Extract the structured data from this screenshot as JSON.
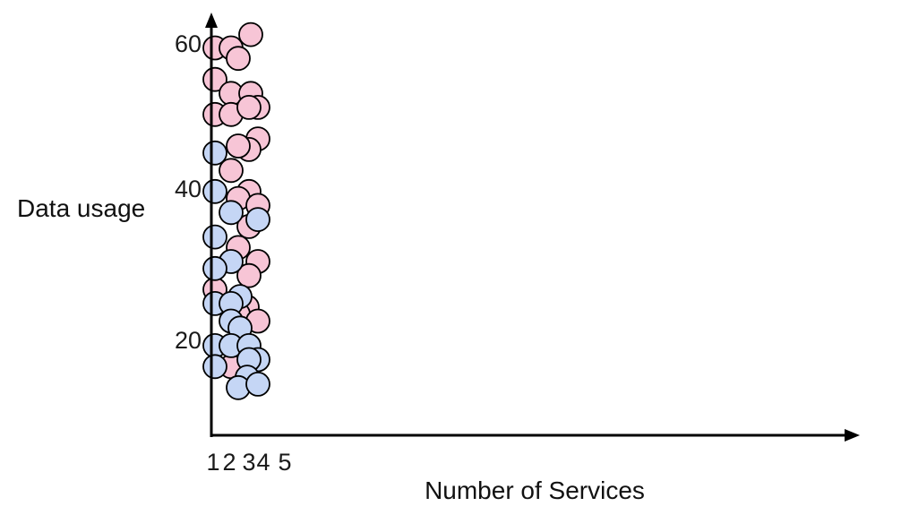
{
  "chart_data": {
    "type": "scatter",
    "title": "",
    "xlabel": "Number of Services",
    "ylabel": "Data usage",
    "x_ticks": [
      "1",
      "2",
      "3",
      "4",
      "5"
    ],
    "y_ticks": [
      "20",
      "40",
      "60"
    ],
    "xlim": [
      1,
      5
    ],
    "ylim": [
      7,
      63
    ],
    "grid": false,
    "legend": "none",
    "colors": {
      "pink": "#f7c5d6",
      "blue": "#c5d6f5",
      "outline": "#000000",
      "axis": "#000000"
    },
    "series": [
      {
        "color": "pink",
        "points": [
          {
            "x": 1.1,
            "y": 60.0
          },
          {
            "x": 2.0,
            "y": 60.0
          },
          {
            "x": 3.1,
            "y": 61.9
          },
          {
            "x": 2.4,
            "y": 58.5
          },
          {
            "x": 1.1,
            "y": 55.5
          },
          {
            "x": 2.0,
            "y": 53.5
          },
          {
            "x": 3.1,
            "y": 53.5
          },
          {
            "x": 1.1,
            "y": 50.5
          },
          {
            "x": 2.0,
            "y": 50.5
          },
          {
            "x": 3.5,
            "y": 51.5
          },
          {
            "x": 3.0,
            "y": 51.5
          },
          {
            "x": 3.5,
            "y": 47.0
          },
          {
            "x": 3.0,
            "y": 45.5
          },
          {
            "x": 2.4,
            "y": 46.0
          },
          {
            "x": 2.0,
            "y": 42.5
          },
          {
            "x": 3.0,
            "y": 39.5
          },
          {
            "x": 2.4,
            "y": 38.5
          },
          {
            "x": 3.5,
            "y": 37.5
          },
          {
            "x": 3.0,
            "y": 34.5
          },
          {
            "x": 2.4,
            "y": 31.5
          },
          {
            "x": 3.5,
            "y": 29.5
          },
          {
            "x": 3.0,
            "y": 27.5
          },
          {
            "x": 1.1,
            "y": 25.5
          },
          {
            "x": 2.9,
            "y": 23.0
          },
          {
            "x": 2.4,
            "y": 22.0
          },
          {
            "x": 3.5,
            "y": 21.0
          },
          {
            "x": 2.0,
            "y": 14.5
          }
        ]
      },
      {
        "color": "blue",
        "points": [
          {
            "x": 1.1,
            "y": 45.0
          },
          {
            "x": 1.1,
            "y": 39.5
          },
          {
            "x": 2.0,
            "y": 36.5
          },
          {
            "x": 3.5,
            "y": 35.5
          },
          {
            "x": 1.1,
            "y": 33.0
          },
          {
            "x": 2.0,
            "y": 29.5
          },
          {
            "x": 1.1,
            "y": 28.5
          },
          {
            "x": 2.5,
            "y": 24.5
          },
          {
            "x": 1.1,
            "y": 23.5
          },
          {
            "x": 2.0,
            "y": 23.5
          },
          {
            "x": 2.0,
            "y": 21.0
          },
          {
            "x": 2.5,
            "y": 20.0
          },
          {
            "x": 1.1,
            "y": 17.5
          },
          {
            "x": 2.0,
            "y": 17.5
          },
          {
            "x": 3.0,
            "y": 17.5
          },
          {
            "x": 3.5,
            "y": 15.5
          },
          {
            "x": 1.1,
            "y": 14.5
          },
          {
            "x": 3.0,
            "y": 15.5
          },
          {
            "x": 2.9,
            "y": 13.0
          },
          {
            "x": 2.4,
            "y": 11.5
          },
          {
            "x": 3.5,
            "y": 12.0
          }
        ]
      }
    ]
  }
}
